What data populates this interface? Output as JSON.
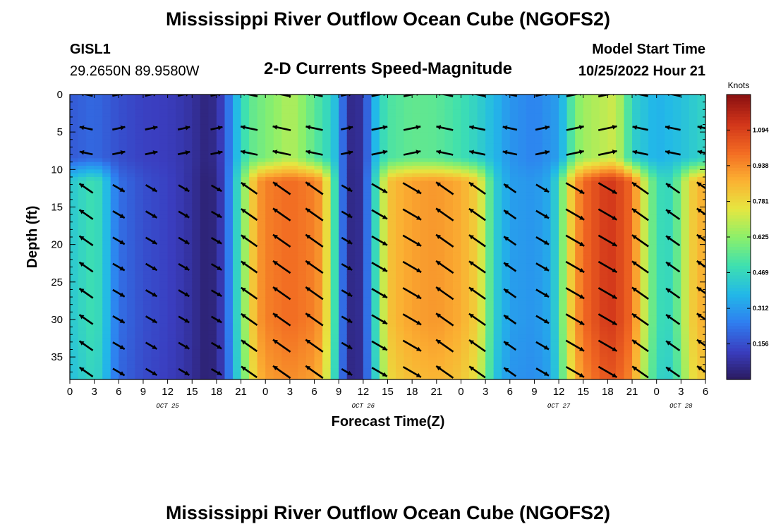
{
  "header": {
    "title": "Mississippi River Outflow Ocean Cube (NGOFS2)",
    "station": "GISL1",
    "coords": "29.2650N  89.9580W",
    "subtitle": "2-D Currents Speed-Magnitude",
    "model_label": "Model Start Time",
    "model_time": "10/25/2022 Hour 21"
  },
  "footer": {
    "title": "Mississippi River Outflow Ocean Cube (NGOFS2)"
  },
  "chart_data": {
    "type": "heatmap",
    "title": "2-D Currents Speed-Magnitude",
    "xlabel": "Forecast Time(Z)",
    "ylabel": "Depth (ft)",
    "x_units": "hours since 10/25/2022 00Z",
    "xlim": [
      0,
      78
    ],
    "ylim": [
      0,
      38
    ],
    "y_inverted": true,
    "x_ticks": [
      0,
      3,
      6,
      9,
      12,
      15,
      18,
      21,
      24,
      27,
      30,
      33,
      36,
      39,
      42,
      45,
      48,
      51,
      54,
      57,
      60,
      63,
      66,
      69,
      72,
      75,
      78
    ],
    "x_tick_labels": [
      "0",
      "3",
      "6",
      "9",
      "12",
      "15",
      "18",
      "21",
      "0",
      "3",
      "6",
      "9",
      "12",
      "15",
      "18",
      "21",
      "0",
      "3",
      "6",
      "9",
      "12",
      "15",
      "18",
      "21",
      "0",
      "3",
      "6"
    ],
    "date_labels": [
      {
        "x": 12,
        "text": "OCT 25"
      },
      {
        "x": 36,
        "text": "OCT 26"
      },
      {
        "x": 60,
        "text": "OCT 27"
      },
      {
        "x": 75,
        "text": "OCT 28"
      }
    ],
    "y_ticks": [
      0,
      5,
      10,
      15,
      20,
      25,
      30,
      35
    ],
    "y_tick_labels": [
      "0",
      "5",
      "10",
      "15",
      "20",
      "25",
      "30",
      "35"
    ],
    "colorbar": {
      "unit": "Knots",
      "min": 0.0,
      "max": 1.25,
      "ticks": [
        0.156,
        0.312,
        0.469,
        0.625,
        0.781,
        0.938,
        1.094
      ],
      "tick_labels": [
        "0.156",
        "0.312",
        "0.469",
        "0.625",
        "0.781",
        "0.938",
        "1.094"
      ],
      "colors": [
        "#2a1a5e",
        "#3a3ec0",
        "#2f7ef0",
        "#22b8e8",
        "#3ee0b0",
        "#8cf06a",
        "#e6e640",
        "#fbb032",
        "#f26a22",
        "#d0341a",
        "#8a1010"
      ]
    },
    "speed_profile_upper": [
      [
        0,
        0.18
      ],
      [
        2,
        0.2
      ],
      [
        3,
        0.21
      ],
      [
        6,
        0.16
      ],
      [
        9,
        0.13
      ],
      [
        12,
        0.12
      ],
      [
        14,
        0.1
      ],
      [
        16,
        0.06
      ],
      [
        17,
        0.03
      ],
      [
        18,
        0.08
      ],
      [
        19,
        0.15
      ],
      [
        20,
        0.32
      ],
      [
        21,
        0.45
      ],
      [
        22,
        0.55
      ],
      [
        24,
        0.6
      ],
      [
        26,
        0.65
      ],
      [
        27,
        0.68
      ],
      [
        28,
        0.65
      ],
      [
        30,
        0.55
      ],
      [
        32,
        0.45
      ],
      [
        33,
        0.35
      ],
      [
        34,
        0.08
      ],
      [
        35,
        0.04
      ],
      [
        36,
        0.1
      ],
      [
        37,
        0.3
      ],
      [
        38,
        0.45
      ],
      [
        39,
        0.52
      ],
      [
        42,
        0.56
      ],
      [
        45,
        0.55
      ],
      [
        48,
        0.5
      ],
      [
        50,
        0.45
      ],
      [
        52,
        0.38
      ],
      [
        54,
        0.3
      ],
      [
        57,
        0.26
      ],
      [
        60,
        0.32
      ],
      [
        61,
        0.45
      ],
      [
        62,
        0.6
      ],
      [
        63,
        0.65
      ],
      [
        66,
        0.7
      ],
      [
        67,
        0.72
      ],
      [
        68,
        0.6
      ],
      [
        69,
        0.45
      ],
      [
        70,
        0.42
      ],
      [
        72,
        0.36
      ],
      [
        75,
        0.4
      ],
      [
        78,
        0.46
      ]
    ],
    "speed_profile_lower": [
      [
        0,
        0.42
      ],
      [
        2,
        0.48
      ],
      [
        3,
        0.5
      ],
      [
        4,
        0.45
      ],
      [
        5,
        0.32
      ],
      [
        6,
        0.22
      ],
      [
        9,
        0.16
      ],
      [
        12,
        0.13
      ],
      [
        14,
        0.1
      ],
      [
        16,
        0.05
      ],
      [
        17,
        0.02
      ],
      [
        18,
        0.06
      ],
      [
        19,
        0.15
      ],
      [
        20,
        0.35
      ],
      [
        21,
        0.55
      ],
      [
        22,
        0.75
      ],
      [
        23,
        0.9
      ],
      [
        24,
        0.96
      ],
      [
        27,
        1.0
      ],
      [
        30,
        0.96
      ],
      [
        31,
        0.9
      ],
      [
        32,
        0.65
      ],
      [
        33,
        0.35
      ],
      [
        34,
        0.08
      ],
      [
        35,
        0.03
      ],
      [
        36,
        0.1
      ],
      [
        37,
        0.35
      ],
      [
        38,
        0.6
      ],
      [
        39,
        0.82
      ],
      [
        40,
        0.86
      ],
      [
        42,
        0.9
      ],
      [
        45,
        0.92
      ],
      [
        48,
        0.88
      ],
      [
        50,
        0.8
      ],
      [
        51,
        0.65
      ],
      [
        52,
        0.45
      ],
      [
        54,
        0.32
      ],
      [
        57,
        0.3
      ],
      [
        59,
        0.35
      ],
      [
        60,
        0.5
      ],
      [
        61,
        0.72
      ],
      [
        62,
        0.9
      ],
      [
        63,
        1.0
      ],
      [
        66,
        1.12
      ],
      [
        67,
        1.1
      ],
      [
        69,
        1.0
      ],
      [
        70,
        0.8
      ],
      [
        71,
        0.62
      ],
      [
        72,
        0.52
      ],
      [
        73,
        0.45
      ],
      [
        74,
        0.5
      ],
      [
        75,
        0.62
      ],
      [
        76,
        0.78
      ],
      [
        77,
        0.85
      ],
      [
        78,
        0.88
      ]
    ],
    "layer_boundary_depth": 10,
    "vector_times": [
      2,
      6,
      10,
      14,
      18,
      22,
      26,
      30,
      34,
      38,
      42,
      46,
      50,
      54,
      58,
      62,
      66,
      70,
      74,
      78
    ],
    "vector_depths": [
      0,
      4.5,
      7.8,
      12.5,
      16,
      19.5,
      23,
      26.5,
      30,
      33.5,
      37
    ]
  }
}
